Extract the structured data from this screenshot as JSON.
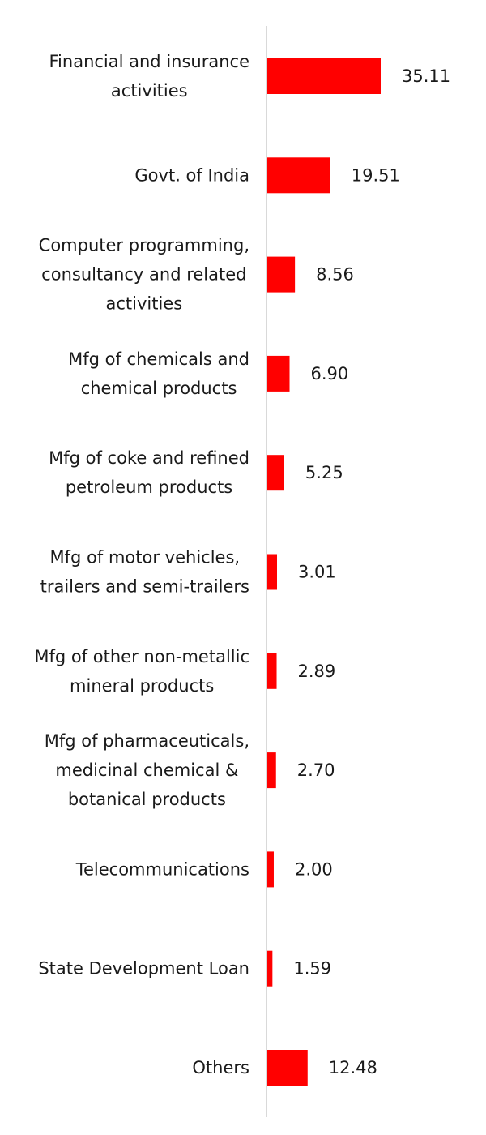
{
  "chart_data": {
    "type": "bar",
    "orientation": "horizontal",
    "bar_color": "#ff0000",
    "axis_color": "#d9d9d9",
    "categories": [
      [
        "Financial and insurance",
        "activities"
      ],
      [
        "Govt. of India"
      ],
      [
        "Computer programming,",
        "consultancy and related",
        "activities"
      ],
      [
        "Mfg of chemicals and",
        "chemical products"
      ],
      [
        "Mfg of coke and refined",
        "petroleum products"
      ],
      [
        "Mfg of motor vehicles,",
        "trailers and semi-trailers"
      ],
      [
        "Mfg of other non-metallic",
        "mineral products"
      ],
      [
        "Mfg of pharmaceuticals,",
        "medicinal chemical &",
        "botanical products"
      ],
      [
        "Telecommunications"
      ],
      [
        "State Development Loan"
      ],
      [
        "Others"
      ]
    ],
    "values": [
      35.11,
      19.51,
      8.56,
      6.9,
      5.25,
      3.01,
      2.89,
      2.7,
      2.0,
      1.59,
      12.48
    ],
    "value_labels": [
      "35.11",
      "19.51",
      "8.56",
      "6.90",
      "5.25",
      "3.01",
      "2.89",
      "2.70",
      "2.00",
      "1.59",
      "12.48"
    ],
    "title": "",
    "xlabel": "",
    "ylabel": "",
    "grid": false,
    "legend": false
  }
}
